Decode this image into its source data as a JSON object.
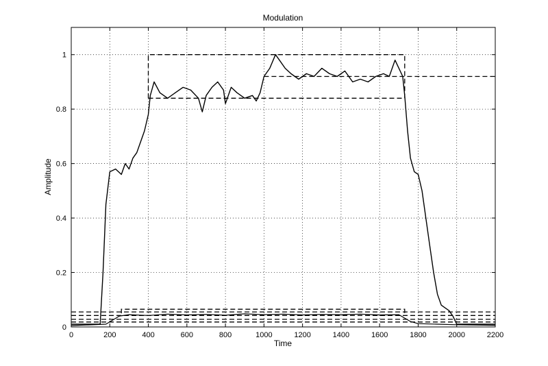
{
  "chart_data": {
    "type": "line",
    "title": "Modulation",
    "xlabel": "Time",
    "ylabel": "Amplitude",
    "xlim": [
      0,
      2200
    ],
    "ylim": [
      0,
      1.1
    ],
    "x_ticks": [
      0,
      200,
      400,
      600,
      800,
      1000,
      1200,
      1400,
      1600,
      1800,
      2000,
      2200
    ],
    "y_ticks": [
      0,
      0.2,
      0.4,
      0.6,
      0.8,
      1
    ],
    "y_tick_labels": [
      "0",
      "0.2",
      "0.4",
      "0.6",
      "0.8",
      "1"
    ],
    "grid": "dotted",
    "legend": "none",
    "series": [
      {
        "style": "solid",
        "color": "#000000",
        "x": [
          0,
          150,
          165,
          180,
          200,
          230,
          260,
          280,
          300,
          320,
          340,
          360,
          380,
          400,
          410,
          430,
          460,
          500,
          540,
          580,
          620,
          660,
          680,
          700,
          730,
          760,
          790,
          800,
          830,
          860,
          900,
          940,
          960,
          980,
          1000,
          1030,
          1060,
          1080,
          1110,
          1140,
          1180,
          1220,
          1260,
          1300,
          1340,
          1380,
          1420,
          1460,
          1500,
          1540,
          1580,
          1620,
          1650,
          1680,
          1700,
          1720,
          1730,
          1745,
          1760,
          1780,
          1800,
          1820,
          1840,
          1860,
          1880,
          1900,
          1920,
          1940,
          1960,
          1980,
          2000,
          2200
        ],
        "y": [
          0.01,
          0.01,
          0.2,
          0.45,
          0.57,
          0.58,
          0.56,
          0.6,
          0.58,
          0.62,
          0.64,
          0.68,
          0.72,
          0.78,
          0.85,
          0.9,
          0.86,
          0.84,
          0.86,
          0.88,
          0.87,
          0.84,
          0.79,
          0.85,
          0.88,
          0.9,
          0.87,
          0.82,
          0.88,
          0.86,
          0.84,
          0.85,
          0.83,
          0.86,
          0.92,
          0.95,
          1.0,
          0.98,
          0.95,
          0.93,
          0.91,
          0.93,
          0.92,
          0.95,
          0.93,
          0.92,
          0.94,
          0.9,
          0.91,
          0.9,
          0.92,
          0.93,
          0.92,
          0.98,
          0.95,
          0.92,
          0.85,
          0.72,
          0.62,
          0.57,
          0.56,
          0.5,
          0.4,
          0.3,
          0.2,
          0.12,
          0.08,
          0.07,
          0.06,
          0.04,
          0.01,
          0.01
        ]
      },
      {
        "style": "solid",
        "color": "#000000",
        "x": [
          0,
          180,
          250,
          300,
          400,
          500,
          600,
          700,
          800,
          900,
          1000,
          1100,
          1200,
          1300,
          1400,
          1500,
          1600,
          1700,
          1760,
          1800,
          1900,
          2000,
          2200
        ],
        "y": [
          0.005,
          0.01,
          0.04,
          0.045,
          0.042,
          0.047,
          0.044,
          0.046,
          0.043,
          0.048,
          0.045,
          0.047,
          0.044,
          0.046,
          0.045,
          0.047,
          0.044,
          0.045,
          0.02,
          0.012,
          0.01,
          0.008,
          0.006
        ]
      }
    ],
    "reference_lines": [
      {
        "style": "dashed",
        "x": [
          400,
          400,
          1730,
          1730
        ],
        "y": [
          0.84,
          1.0,
          1.0,
          0.84
        ]
      },
      {
        "style": "dashed",
        "x": [
          400,
          1730
        ],
        "y": [
          0.84,
          0.84
        ]
      },
      {
        "style": "dashed",
        "x": [
          1000,
          2200
        ],
        "y": [
          0.92,
          0.92
        ]
      },
      {
        "style": "dashed",
        "x": [
          260,
          260,
          1730,
          1730
        ],
        "y": [
          0.05,
          0.065,
          0.065,
          0.05
        ]
      },
      {
        "style": "dashed",
        "x": [
          0,
          2200
        ],
        "y": [
          0.055,
          0.055
        ]
      },
      {
        "style": "dashed",
        "x": [
          0,
          2200
        ],
        "y": [
          0.042,
          0.042
        ]
      },
      {
        "style": "dashed",
        "x": [
          0,
          2200
        ],
        "y": [
          0.028,
          0.028
        ]
      },
      {
        "style": "dashed",
        "x": [
          0,
          2200
        ],
        "y": [
          0.018,
          0.018
        ]
      }
    ]
  }
}
